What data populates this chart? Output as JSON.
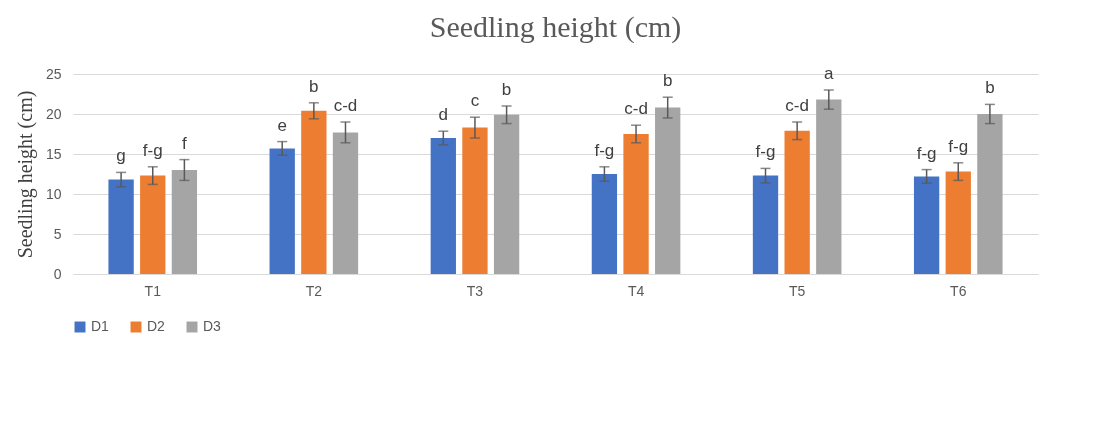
{
  "chart_data": {
    "type": "bar",
    "title": "Seedling height (cm)",
    "ylabel": "Seedling  height (cm)",
    "categories": [
      "T1",
      "T2",
      "T3",
      "T4",
      "T5",
      "T6"
    ],
    "series": [
      {
        "name": "D1",
        "color": "#4472c4",
        "values": [
          11.8,
          15.7,
          17.0,
          12.5,
          12.3,
          12.2
        ],
        "errors": [
          0.9,
          0.85,
          0.85,
          0.9,
          0.9,
          0.85
        ],
        "value_labels": [
          "g",
          "e",
          "d",
          "f-g",
          "f-g",
          "f-g"
        ]
      },
      {
        "name": "D2",
        "color": "#ed7d31",
        "values": [
          12.3,
          20.4,
          18.3,
          17.5,
          17.9,
          12.8
        ],
        "errors": [
          1.1,
          1.0,
          1.3,
          1.1,
          1.1,
          1.1
        ],
        "value_labels": [
          "f-g",
          "b",
          "c",
          "c-d",
          "c-d",
          "f-g"
        ]
      },
      {
        "name": "D3",
        "color": "#a5a5a5",
        "values": [
          13.0,
          17.7,
          19.9,
          20.8,
          21.8,
          20.0
        ],
        "errors": [
          1.3,
          1.3,
          1.1,
          1.3,
          1.2,
          1.2
        ],
        "value_labels": [
          "f",
          "c-d",
          "b",
          "b",
          "a",
          "b"
        ]
      }
    ],
    "ylim": [
      0,
      25
    ],
    "yticks": [
      0,
      5,
      10,
      15,
      20,
      25
    ],
    "grid": "y",
    "legend": "bottom"
  }
}
